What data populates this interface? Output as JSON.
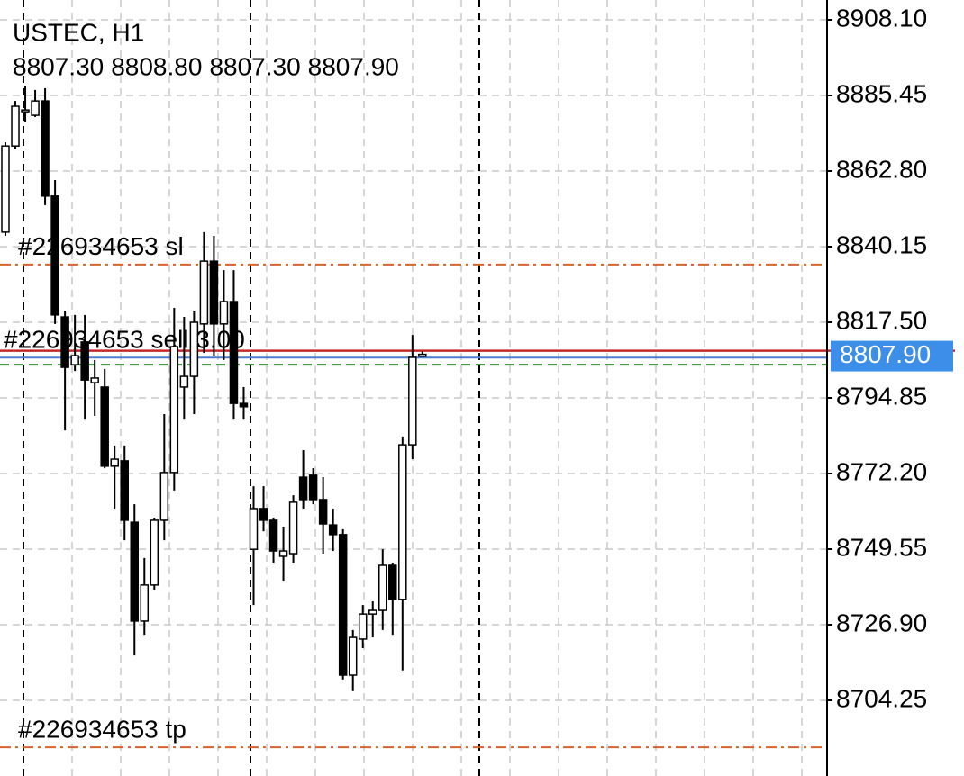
{
  "chart_data": {
    "type": "candlestick",
    "title": "USTEC, H1",
    "ohlc_text": [
      "8807.30",
      "8808.80",
      "8807.30",
      "8807.90"
    ],
    "open": [
      8844.5,
      8870.3,
      8880.6,
      8879.5,
      8883.8,
      8855.3,
      8819.1,
      8804.8,
      8811.6,
      8799.4,
      8798.1,
      8774.4,
      8776.0,
      8757.6,
      8728.0,
      8738.8,
      8758.2,
      8772.5,
      8798.1,
      8801.3,
      8817.0,
      8835.8,
      8817.0,
      8823.7,
      8793.2,
      8749.5,
      8761.7,
      8758.2,
      8747.4,
      8748.2,
      8771.1,
      8771.7,
      8764.4,
      8756.8,
      8753.9,
      8711.8,
      8722.6,
      8730.1,
      8731.2,
      8744.7,
      8734.5,
      8780.8,
      8807.3
    ],
    "high": [
      8871.4,
      8883.8,
      8888.4,
      8887.1,
      8887.6,
      8860.1,
      8821.0,
      8819.7,
      8819.7,
      8806.2,
      8803.5,
      8780.6,
      8780.6,
      8763.0,
      8746.9,
      8759.0,
      8790.0,
      8821.8,
      8819.1,
      8821.0,
      8844.5,
      8843.4,
      8833.1,
      8833.1,
      8798.1,
      8768.4,
      8768.4,
      8759.0,
      8756.3,
      8765.7,
      8779.2,
      8773.8,
      8771.1,
      8761.7,
      8755.5,
      8725.3,
      8732.8,
      8733.9,
      8749.5,
      8745.5,
      8783.3,
      8813.7,
      8808.8
    ],
    "low": [
      8843.4,
      8869.5,
      8877.6,
      8879.0,
      8852.6,
      8817.0,
      8785.1,
      8802.9,
      8788.6,
      8789.5,
      8773.8,
      8761.7,
      8752.2,
      8717.7,
      8723.9,
      8737.4,
      8752.2,
      8767.1,
      8788.6,
      8790.0,
      8808.3,
      8807.5,
      8806.2,
      8788.6,
      8788.6,
      8732.8,
      8754.9,
      8745.5,
      8740.1,
      8745.5,
      8761.7,
      8763.0,
      8748.2,
      8749.0,
      8710.5,
      8707.0,
      8719.9,
      8723.1,
      8725.3,
      8723.9,
      8713.2,
      8776.5,
      8807.3
    ],
    "close": [
      8870.3,
      8882.2,
      8881.1,
      8883.8,
      8855.3,
      8819.7,
      8804.0,
      8807.5,
      8800.2,
      8800.8,
      8774.4,
      8776.5,
      8758.2,
      8728.0,
      8738.8,
      8758.2,
      8772.5,
      8810.2,
      8801.3,
      8817.5,
      8835.8,
      8817.0,
      8823.7,
      8793.2,
      8792.2,
      8761.7,
      8758.2,
      8749.0,
      8749.0,
      8763.6,
      8764.4,
      8764.4,
      8757.1,
      8753.9,
      8711.8,
      8723.1,
      8730.1,
      8731.2,
      8744.7,
      8734.5,
      8780.8,
      8807.0,
      8807.9
    ],
    "ylim": [
      8681.6,
      8914.03
    ],
    "yticks": [
      {
        "value": 8908.1,
        "label": "8908.10"
      },
      8885.45,
      {
        "value": 8862.8,
        "label": "8862.80"
      },
      8840.15,
      {
        "value": 8817.5,
        "label": "8817.50"
      },
      8794.85,
      {
        "value": 8772.2,
        "label": "8772.20"
      },
      8749.55,
      {
        "value": 8726.9,
        "label": "8726.90"
      },
      8704.25
    ],
    "grid": true,
    "current_price": {
      "value": 8807.9,
      "label": "8807.90",
      "color": "#c62828"
    },
    "levels": [
      {
        "name": "#226934653 sl",
        "value": 8834.8,
        "color": "#d9622b",
        "style": "dashdot"
      },
      {
        "name": "#226934653 sell 3.00",
        "value": 8806.9,
        "color": "#4a7fd0",
        "style": "solid"
      },
      {
        "value": 8804.8,
        "color": "#2e8b2e",
        "style": "dashed"
      },
      {
        "name": "#226934653 tp",
        "value": 8690.2,
        "color": "#d9622b",
        "style": "dashdot"
      }
    ]
  }
}
